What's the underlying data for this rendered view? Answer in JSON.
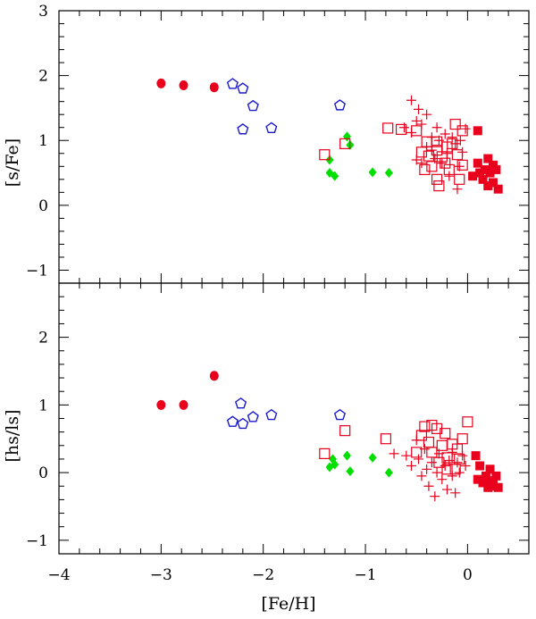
{
  "chart_data": [
    {
      "type": "scatter",
      "xlabel": "[Fe/H]",
      "ylabel": "[s/Fe]",
      "xlim": [
        -4.0,
        0.6
      ],
      "ylim": [
        -1.2,
        3.0
      ],
      "xticks": [
        "−4",
        "−3",
        "−2",
        "−1",
        "0"
      ],
      "yticks": [
        "−1",
        "0",
        "1",
        "2",
        "3"
      ],
      "series": [
        {
          "marker": "filled-circle",
          "color": "#e8001c",
          "points": [
            [
              -3.0,
              1.88
            ],
            [
              -2.78,
              1.85
            ],
            [
              -2.48,
              1.82
            ]
          ]
        },
        {
          "marker": "open-pentagon",
          "color": "#1a1acc",
          "points": [
            [
              -2.3,
              1.87
            ],
            [
              -2.2,
              1.8
            ],
            [
              -2.1,
              1.53
            ],
            [
              -2.2,
              1.17
            ],
            [
              -1.92,
              1.19
            ],
            [
              -1.25,
              1.54
            ]
          ]
        },
        {
          "marker": "filled-diamond",
          "color": "#00e000",
          "points": [
            [
              -1.35,
              0.7
            ],
            [
              -1.35,
              0.5
            ],
            [
              -1.3,
              0.45
            ],
            [
              -1.18,
              1.06
            ],
            [
              -1.15,
              0.93
            ],
            [
              -0.93,
              0.51
            ],
            [
              -0.77,
              0.5
            ]
          ]
        },
        {
          "marker": "open-square",
          "color": "#e8001c",
          "points": [
            [
              -1.4,
              0.78
            ],
            [
              -1.2,
              0.95
            ],
            [
              -0.78,
              1.19
            ],
            [
              -0.65,
              1.17
            ],
            [
              -0.5,
              1.15
            ],
            [
              -0.45,
              0.82
            ],
            [
              -0.4,
              0.98
            ],
            [
              -0.38,
              0.76
            ],
            [
              -0.35,
              0.6
            ],
            [
              -0.42,
              0.55
            ],
            [
              -0.3,
              0.98
            ],
            [
              -0.3,
              0.4
            ],
            [
              -0.25,
              0.75
            ],
            [
              -0.22,
              0.65
            ],
            [
              -0.2,
              0.9
            ],
            [
              -0.18,
              0.55
            ],
            [
              -0.15,
              0.95
            ],
            [
              -0.12,
              1.25
            ],
            [
              -0.1,
              0.78
            ],
            [
              -0.08,
              0.4
            ],
            [
              -0.05,
              1.15
            ],
            [
              -0.05,
              0.62
            ],
            [
              -0.3,
              0.85
            ],
            [
              -0.28,
              0.3
            ]
          ]
        },
        {
          "marker": "plus",
          "color": "#e8001c",
          "points": [
            [
              -0.55,
              1.62
            ],
            [
              -0.55,
              1.12
            ],
            [
              -0.5,
              1.3
            ],
            [
              -0.48,
              1.48
            ],
            [
              -0.45,
              1.25
            ],
            [
              -0.4,
              1.4
            ],
            [
              -0.35,
              1.05
            ],
            [
              -0.32,
              0.72
            ],
            [
              -0.3,
              1.2
            ],
            [
              -0.28,
              1.0
            ],
            [
              -0.25,
              0.65
            ],
            [
              -0.22,
              1.1
            ],
            [
              -0.2,
              0.8
            ],
            [
              -0.18,
              0.45
            ],
            [
              -0.15,
              1.05
            ],
            [
              -0.12,
              0.95
            ],
            [
              -0.1,
              0.25
            ],
            [
              -0.08,
              0.6
            ],
            [
              -0.07,
              1.0
            ],
            [
              -0.05,
              0.82
            ],
            [
              -0.02,
              1.18
            ],
            [
              -0.4,
              0.9
            ],
            [
              -0.45,
              0.65
            ],
            [
              -0.5,
              0.7
            ],
            [
              -0.62,
              1.2
            ],
            [
              -0.35,
              0.85
            ]
          ]
        },
        {
          "marker": "filled-square",
          "color": "#e8001c",
          "points": [
            [
              0.05,
              0.45
            ],
            [
              0.1,
              0.65
            ],
            [
              0.1,
              1.15
            ],
            [
              0.15,
              0.4
            ],
            [
              0.17,
              0.55
            ],
            [
              0.2,
              0.72
            ],
            [
              0.22,
              0.5
            ],
            [
              0.25,
              0.35
            ],
            [
              0.2,
              0.3
            ],
            [
              0.28,
              0.55
            ],
            [
              0.3,
              0.25
            ],
            [
              0.12,
              0.5
            ],
            [
              0.25,
              0.62
            ]
          ]
        }
      ]
    },
    {
      "type": "scatter",
      "xlabel": "[Fe/H]",
      "ylabel": "[hs/ls]",
      "xlim": [
        -4.0,
        0.6
      ],
      "ylim": [
        -1.2,
        2.8
      ],
      "xticks": [
        "−4",
        "−3",
        "−2",
        "−1",
        "0"
      ],
      "yticks": [
        "−1",
        "0",
        "1",
        "2"
      ],
      "series": [
        {
          "marker": "filled-circle",
          "color": "#e8001c",
          "points": [
            [
              -3.0,
              1.0
            ],
            [
              -2.78,
              1.0
            ],
            [
              -2.48,
              1.43
            ]
          ]
        },
        {
          "marker": "open-pentagon",
          "color": "#1a1acc",
          "points": [
            [
              -2.3,
              0.75
            ],
            [
              -2.22,
              1.02
            ],
            [
              -2.2,
              0.72
            ],
            [
              -2.1,
              0.82
            ],
            [
              -1.92,
              0.85
            ],
            [
              -1.25,
              0.85
            ]
          ]
        },
        {
          "marker": "filled-diamond",
          "color": "#00e000",
          "points": [
            [
              -1.35,
              0.08
            ],
            [
              -1.32,
              0.2
            ],
            [
              -1.3,
              0.12
            ],
            [
              -1.18,
              0.25
            ],
            [
              -1.15,
              0.02
            ],
            [
              -0.93,
              0.22
            ],
            [
              -0.77,
              0.0
            ]
          ]
        },
        {
          "marker": "open-square",
          "color": "#e8001c",
          "points": [
            [
              -1.4,
              0.28
            ],
            [
              -1.2,
              0.62
            ],
            [
              -0.8,
              0.5
            ],
            [
              -0.5,
              0.3
            ],
            [
              -0.45,
              0.55
            ],
            [
              -0.42,
              0.68
            ],
            [
              -0.38,
              0.45
            ],
            [
              -0.35,
              0.3
            ],
            [
              -0.3,
              0.65
            ],
            [
              -0.28,
              0.15
            ],
            [
              -0.25,
              0.4
            ],
            [
              -0.22,
              0.58
            ],
            [
              -0.2,
              0.22
            ],
            [
              -0.15,
              0.42
            ],
            [
              -0.12,
              0.05
            ],
            [
              -0.1,
              0.35
            ],
            [
              -0.08,
              0.2
            ],
            [
              -0.05,
              0.5
            ],
            [
              0.0,
              0.75
            ],
            [
              -0.35,
              0.7
            ],
            [
              -0.2,
              0.05
            ]
          ]
        },
        {
          "marker": "plus",
          "color": "#e8001c",
          "points": [
            [
              -0.72,
              0.28
            ],
            [
              -0.6,
              0.25
            ],
            [
              -0.55,
              0.1
            ],
            [
              -0.5,
              0.48
            ],
            [
              -0.48,
              0.2
            ],
            [
              -0.45,
              -0.05
            ],
            [
              -0.42,
              0.35
            ],
            [
              -0.4,
              0.05
            ],
            [
              -0.38,
              -0.2
            ],
            [
              -0.35,
              0.15
            ],
            [
              -0.32,
              -0.35
            ],
            [
              -0.3,
              0.0
            ],
            [
              -0.28,
              0.28
            ],
            [
              -0.25,
              -0.1
            ],
            [
              -0.22,
              0.1
            ],
            [
              -0.2,
              -0.25
            ],
            [
              -0.18,
              0.18
            ],
            [
              -0.15,
              -0.05
            ],
            [
              -0.12,
              -0.3
            ],
            [
              -0.1,
              0.15
            ],
            [
              -0.08,
              0.0
            ],
            [
              -0.05,
              0.25
            ],
            [
              -0.02,
              0.1
            ],
            [
              -0.15,
              0.3
            ]
          ]
        },
        {
          "marker": "filled-square",
          "color": "#e8001c",
          "points": [
            [
              0.08,
              0.25
            ],
            [
              0.1,
              -0.1
            ],
            [
              0.12,
              0.1
            ],
            [
              0.15,
              -0.15
            ],
            [
              0.18,
              -0.05
            ],
            [
              0.2,
              -0.22
            ],
            [
              0.22,
              0.05
            ],
            [
              0.25,
              -0.12
            ],
            [
              0.25,
              -0.2
            ],
            [
              0.3,
              -0.22
            ],
            [
              0.2,
              -0.15
            ],
            [
              0.28,
              -0.05
            ]
          ]
        }
      ]
    }
  ]
}
